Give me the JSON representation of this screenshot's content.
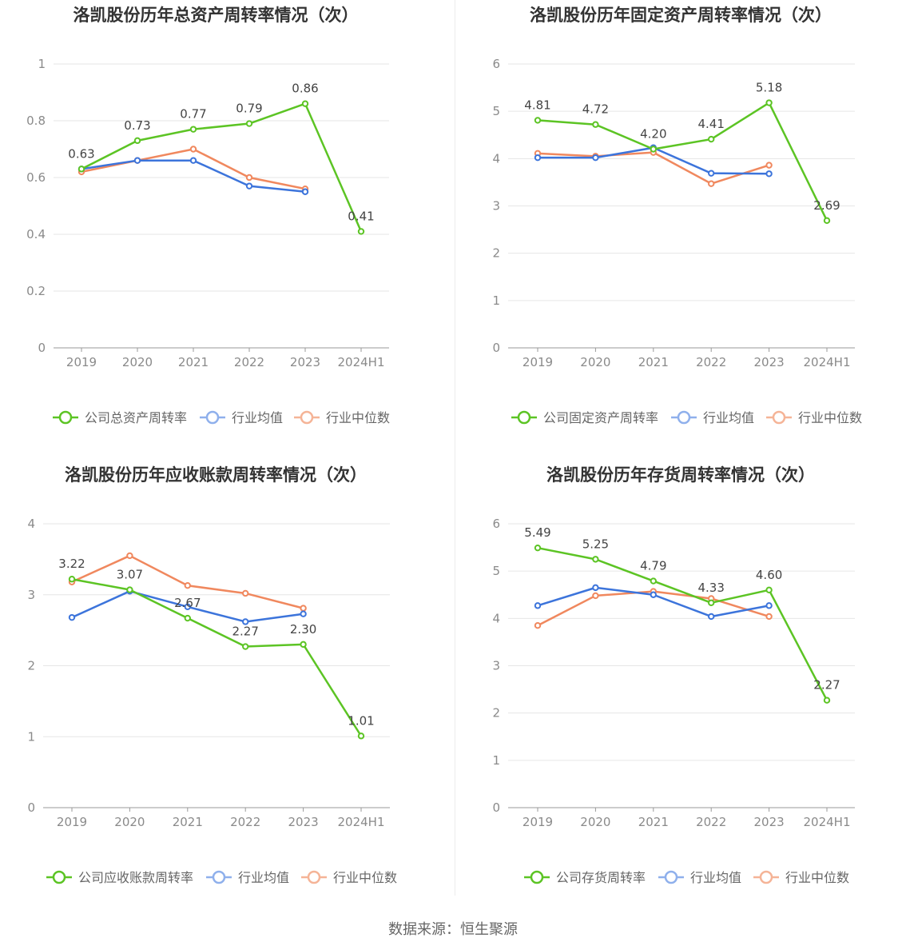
{
  "colors": {
    "company": "#5cc424",
    "avg": "#3c74db",
    "median": "#f0885e",
    "grid": "#e6e6e6",
    "axis": "#999999"
  },
  "footer": "数据来源：恒生聚源",
  "charts": [
    {
      "id": "total-assets",
      "title": "洛凯股份历年总资产周转率情况（次）",
      "legend": [
        "公司总资产周转率",
        "行业均值",
        "行业中位数"
      ],
      "chart_data": {
        "type": "line",
        "title": "洛凯股份历年总资产周转率情况（次）",
        "categories": [
          "2019",
          "2020",
          "2021",
          "2022",
          "2023",
          "2024H1"
        ],
        "y_ticks": [
          "0",
          "0.2",
          "0.4",
          "0.6",
          "0.8",
          "1"
        ],
        "ylim": [
          0,
          1
        ],
        "series": [
          {
            "name": "公司总资产周转率",
            "values": [
              0.63,
              0.73,
              0.77,
              0.79,
              0.86,
              0.41
            ],
            "labels": [
              "0.63",
              "0.73",
              "0.77",
              "0.79",
              "0.86",
              "0.41"
            ]
          },
          {
            "name": "行业均值",
            "values": [
              0.63,
              0.66,
              0.66,
              0.57,
              0.55,
              null
            ]
          },
          {
            "name": "行业中位数",
            "values": [
              0.62,
              0.66,
              0.7,
              0.6,
              0.56,
              null
            ]
          }
        ]
      }
    },
    {
      "id": "fixed-assets",
      "title": "洛凯股份历年固定资产周转率情况（次）",
      "legend": [
        "公司固定资产周转率",
        "行业均值",
        "行业中位数"
      ],
      "chart_data": {
        "type": "line",
        "title": "洛凯股份历年固定资产周转率情况（次）",
        "categories": [
          "2019",
          "2020",
          "2021",
          "2022",
          "2023",
          "2024H1"
        ],
        "y_ticks": [
          "0",
          "1",
          "2",
          "3",
          "4",
          "5",
          "6"
        ],
        "ylim": [
          0,
          6
        ],
        "series": [
          {
            "name": "公司固定资产周转率",
            "values": [
              4.81,
              4.72,
              4.2,
              4.41,
              5.18,
              2.69
            ],
            "labels": [
              "4.81",
              "4.72",
              "4.20",
              "4.41",
              "5.18",
              "2.69"
            ]
          },
          {
            "name": "行业均值",
            "values": [
              4.02,
              4.02,
              4.23,
              3.69,
              3.68,
              null
            ]
          },
          {
            "name": "行业中位数",
            "values": [
              4.11,
              4.05,
              4.13,
              3.47,
              3.86,
              null
            ]
          }
        ]
      }
    },
    {
      "id": "receivables",
      "title": "洛凯股份历年应收账款周转率情况（次）",
      "legend": [
        "公司应收账款周转率",
        "行业均值",
        "行业中位数"
      ],
      "chart_data": {
        "type": "line",
        "title": "洛凯股份历年应收账款周转率情况（次）",
        "categories": [
          "2019",
          "2020",
          "2021",
          "2022",
          "2023",
          "2024H1"
        ],
        "y_ticks": [
          "0",
          "1",
          "2",
          "3",
          "4"
        ],
        "ylim": [
          0,
          4
        ],
        "series": [
          {
            "name": "公司应收账款周转率",
            "values": [
              3.22,
              3.07,
              2.67,
              2.27,
              2.3,
              1.01
            ],
            "labels": [
              "3.22",
              "3.07",
              "2.67",
              "2.27",
              "2.30",
              "1.01"
            ]
          },
          {
            "name": "行业均值",
            "values": [
              2.68,
              3.05,
              2.83,
              2.62,
              2.73,
              null
            ]
          },
          {
            "name": "行业中位数",
            "values": [
              3.18,
              3.55,
              3.13,
              3.02,
              2.81,
              null
            ]
          }
        ]
      }
    },
    {
      "id": "inventory",
      "title": "洛凯股份历年存货周转率情况（次）",
      "legend": [
        "公司存货周转率",
        "行业均值",
        "行业中位数"
      ],
      "chart_data": {
        "type": "line",
        "title": "洛凯股份历年存货周转率情况（次）",
        "categories": [
          "2019",
          "2020",
          "2021",
          "2022",
          "2023",
          "2024H1"
        ],
        "y_ticks": [
          "0",
          "1",
          "2",
          "3",
          "4",
          "5",
          "6"
        ],
        "ylim": [
          0,
          6
        ],
        "series": [
          {
            "name": "公司存货周转率",
            "values": [
              5.49,
              5.25,
              4.79,
              4.33,
              4.6,
              2.27
            ],
            "labels": [
              "5.49",
              "5.25",
              "4.79",
              "4.33",
              "4.60",
              "2.27"
            ]
          },
          {
            "name": "行业均值",
            "values": [
              4.27,
              4.65,
              4.5,
              4.04,
              4.27,
              null
            ]
          },
          {
            "name": "行业中位数",
            "values": [
              3.85,
              4.48,
              4.57,
              4.42,
              4.04,
              null
            ]
          }
        ]
      }
    }
  ]
}
